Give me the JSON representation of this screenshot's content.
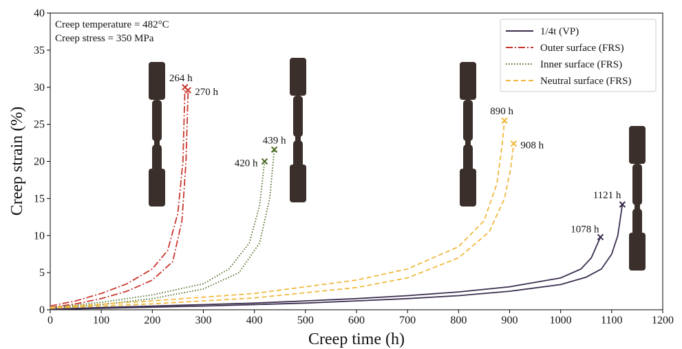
{
  "chart_data": {
    "type": "line",
    "annotations": [
      "Creep temperature = 482°C",
      "Creep stress = 350 MPa"
    ],
    "x_label": "Creep time (h)",
    "y_label": "Creep strain (%)",
    "xlim": [
      0,
      1200
    ],
    "xticks": [
      0,
      100,
      200,
      300,
      400,
      500,
      600,
      700,
      800,
      900,
      1000,
      1100,
      1200
    ],
    "ylim": [
      0,
      40
    ],
    "yticks": [
      0,
      5,
      10,
      15,
      20,
      25,
      30,
      35,
      40
    ],
    "legend": "upper right",
    "series": [
      {
        "name": "1/4t (VP)",
        "color": "#3b2e4f",
        "dash": "solid",
        "curves": [
          {
            "x": [
              0,
              100,
              200,
              300,
              400,
              500,
              600,
              700,
              800,
              900,
              1000,
              1040,
              1060,
              1078
            ],
            "values": [
              0.1,
              0.3,
              0.5,
              0.7,
              0.9,
              1.2,
              1.5,
              1.9,
              2.4,
              3.1,
              4.3,
              5.5,
              7,
              9.8
            ],
            "end_label": "1078 h"
          },
          {
            "x": [
              0,
              100,
              200,
              300,
              400,
              500,
              600,
              700,
              800,
              900,
              1000,
              1050,
              1080,
              1100,
              1112,
              1121
            ],
            "values": [
              0.05,
              0.2,
              0.35,
              0.5,
              0.7,
              0.9,
              1.2,
              1.5,
              1.9,
              2.5,
              3.4,
              4.4,
              5.5,
              7.5,
              10,
              14.2
            ],
            "end_label": "1121 h"
          }
        ]
      },
      {
        "name": "Outer surface (FRS)",
        "color": "#c8372d",
        "dash": "dashdot",
        "curves": [
          {
            "x": [
              0,
              50,
              100,
              150,
              200,
              230,
              250,
              260,
              264
            ],
            "values": [
              0.5,
              1.2,
              2.2,
              3.5,
              5.5,
              8,
              13,
              20,
              30
            ],
            "end_label": "264 h"
          },
          {
            "x": [
              0,
              50,
              100,
              150,
              200,
              240,
              258,
              266,
              270
            ],
            "values": [
              0.3,
              0.8,
              1.5,
              2.5,
              4,
              6.5,
              12,
              20,
              29.6
            ],
            "end_label": "270 h"
          }
        ]
      },
      {
        "name": "Inner surface (FRS)",
        "color": "#4a6b22",
        "dash": "dotted",
        "curves": [
          {
            "x": [
              0,
              100,
              200,
              300,
              350,
              390,
              410,
              420
            ],
            "values": [
              0.3,
              1,
              2,
              3.5,
              5.5,
              9,
              14,
              20
            ],
            "end_label": "420 h"
          },
          {
            "x": [
              0,
              100,
              200,
              300,
              370,
              410,
              430,
              439
            ],
            "values": [
              0.2,
              0.7,
              1.5,
              2.8,
              5,
              9,
              15,
              21.6
            ],
            "end_label": "439 h"
          }
        ]
      },
      {
        "name": "Neutral surface (FRS)",
        "color": "#f0b93e",
        "dash": "dashed",
        "curves": [
          {
            "x": [
              0,
              200,
              400,
              600,
              700,
              800,
              850,
              875,
              885,
              890
            ],
            "values": [
              0.3,
              1.2,
              2.2,
              4,
              5.5,
              8.5,
              12,
              17,
              22,
              25.5
            ],
            "end_label": "890 h"
          },
          {
            "x": [
              0,
              200,
              400,
              600,
              700,
              800,
              860,
              890,
              902,
              908
            ],
            "values": [
              0.2,
              0.8,
              1.6,
              3,
              4.3,
              7,
              10.5,
              15,
              19,
              22.4
            ],
            "end_label": "908 h"
          }
        ]
      }
    ]
  }
}
